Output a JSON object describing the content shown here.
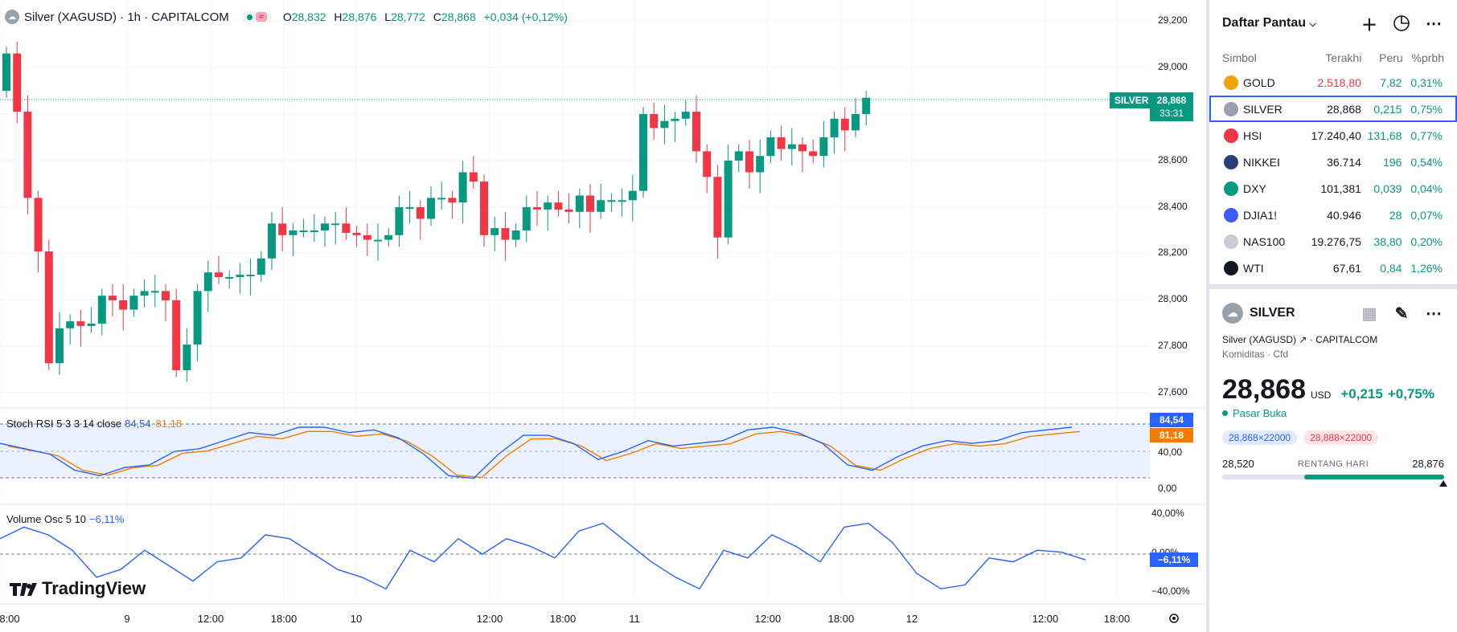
{
  "legend": {
    "symbol": "Silver (XAGUSD) · 1h · CAPITALCOM",
    "open_label": "O",
    "open": "28,832",
    "high_label": "H",
    "high": "28,876",
    "low_label": "L",
    "low": "28,772",
    "close_label": "C",
    "close": "28,868",
    "change": "+0,034 (+0,12%)"
  },
  "stoch": {
    "label": "Stoch RSI 5 3 3 14 close",
    "k": "84,54",
    "d": "81,18"
  },
  "vosc": {
    "label": "Volume Osc 5 10",
    "value": "−6,11%"
  },
  "price_axis": [
    "29,200",
    "29,000",
    "28,800",
    "28,600",
    "28,400",
    "28,200",
    "28,000",
    "27,800",
    "27,600"
  ],
  "stoch_axis": [
    "40,00",
    "0,00"
  ],
  "vosc_axis": [
    "40,00%",
    "0,00%",
    "−40,00%"
  ],
  "price_tag": {
    "symbol": "SILVER",
    "price": "28,868",
    "countdown": "33:31"
  },
  "stoch_tags": {
    "k": "84,54",
    "d": "81,18"
  },
  "vosc_tag": "−6,11%",
  "time_axis": [
    "8:00",
    "9",
    "12:00",
    "18:00",
    "10",
    "12:00",
    "18:00",
    "11",
    "12:00",
    "18:00",
    "12",
    "12:00",
    "18:00"
  ],
  "logo": "TradingView",
  "watchlist": {
    "title": "Daftar Pantau",
    "columns": {
      "symbol": "Simbol",
      "last": "Terakhi",
      "change": "Peru",
      "pct": "%prbh"
    },
    "rows": [
      {
        "symbol": "GOLD",
        "last": "2.518,80",
        "change": "7,82",
        "pct": "0,31%",
        "icon_color": "#f0a30a",
        "last_color": "#f23645"
      },
      {
        "symbol": "SILVER",
        "last": "28,868",
        "change": "0,215",
        "pct": "0,75%",
        "icon_color": "#9aa0ae",
        "last_color": "#131722"
      },
      {
        "symbol": "HSI",
        "last": "17.240,40",
        "change": "131,68",
        "pct": "0,77%",
        "icon_color": "#f23645",
        "last_color": "#131722"
      },
      {
        "symbol": "NIKKEI",
        "last": "36.714",
        "change": "196",
        "pct": "0,54%",
        "icon_color": "#2a3f7a",
        "last_color": "#131722"
      },
      {
        "symbol": "DXY",
        "last": "101,381",
        "change": "0,039",
        "pct": "0,04%",
        "icon_color": "#089981",
        "last_color": "#131722"
      },
      {
        "symbol": "DJIA1!",
        "last": "40.946",
        "change": "28",
        "pct": "0,07%",
        "icon_color": "#3d5afe",
        "last_color": "#131722"
      },
      {
        "symbol": "NAS100",
        "last": "19.276,75",
        "change": "38,80",
        "pct": "0,20%",
        "icon_color": "#c9ccd4",
        "last_color": "#131722"
      },
      {
        "symbol": "WTI",
        "last": "67,61",
        "change": "0,84",
        "pct": "1,26%",
        "icon_color": "#131722",
        "last_color": "#131722"
      }
    ]
  },
  "detail": {
    "symbol": "SILVER",
    "full_name": "Silver (XAGUSD)",
    "exchange": "CAPITALCOM",
    "category": "Komiditas · Cfd",
    "price": "28,868",
    "currency": "USD",
    "change": "+0,215",
    "change_pct": "+0,75%",
    "market_status": "Pasar Buka",
    "bid": "28,868×22000",
    "ask": "28,888×22000",
    "range_low": "28,520",
    "range_label": "RENTANG HARI",
    "range_high": "28,876",
    "range_position": 0.995
  },
  "colors": {
    "up": "#089981",
    "down": "#f23645",
    "blue": "#2962ff",
    "orange": "#f57c00"
  }
}
